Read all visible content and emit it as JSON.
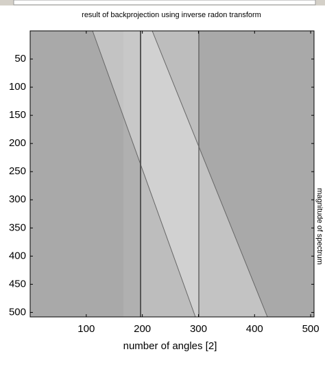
{
  "chart_data": {
    "type": "image",
    "title": "result of backprojection using inverse radon transform",
    "xlabel": "number of angles [2]",
    "ylabel": "magnitude of spectrum",
    "xlim": [
      0,
      506
    ],
    "xticks": [
      100,
      200,
      300,
      400,
      500
    ],
    "ylim": [
      0,
      508
    ],
    "yticks": [
      50,
      100,
      150,
      200,
      250,
      300,
      350,
      400,
      450,
      500
    ],
    "y_reversed": true
  }
}
